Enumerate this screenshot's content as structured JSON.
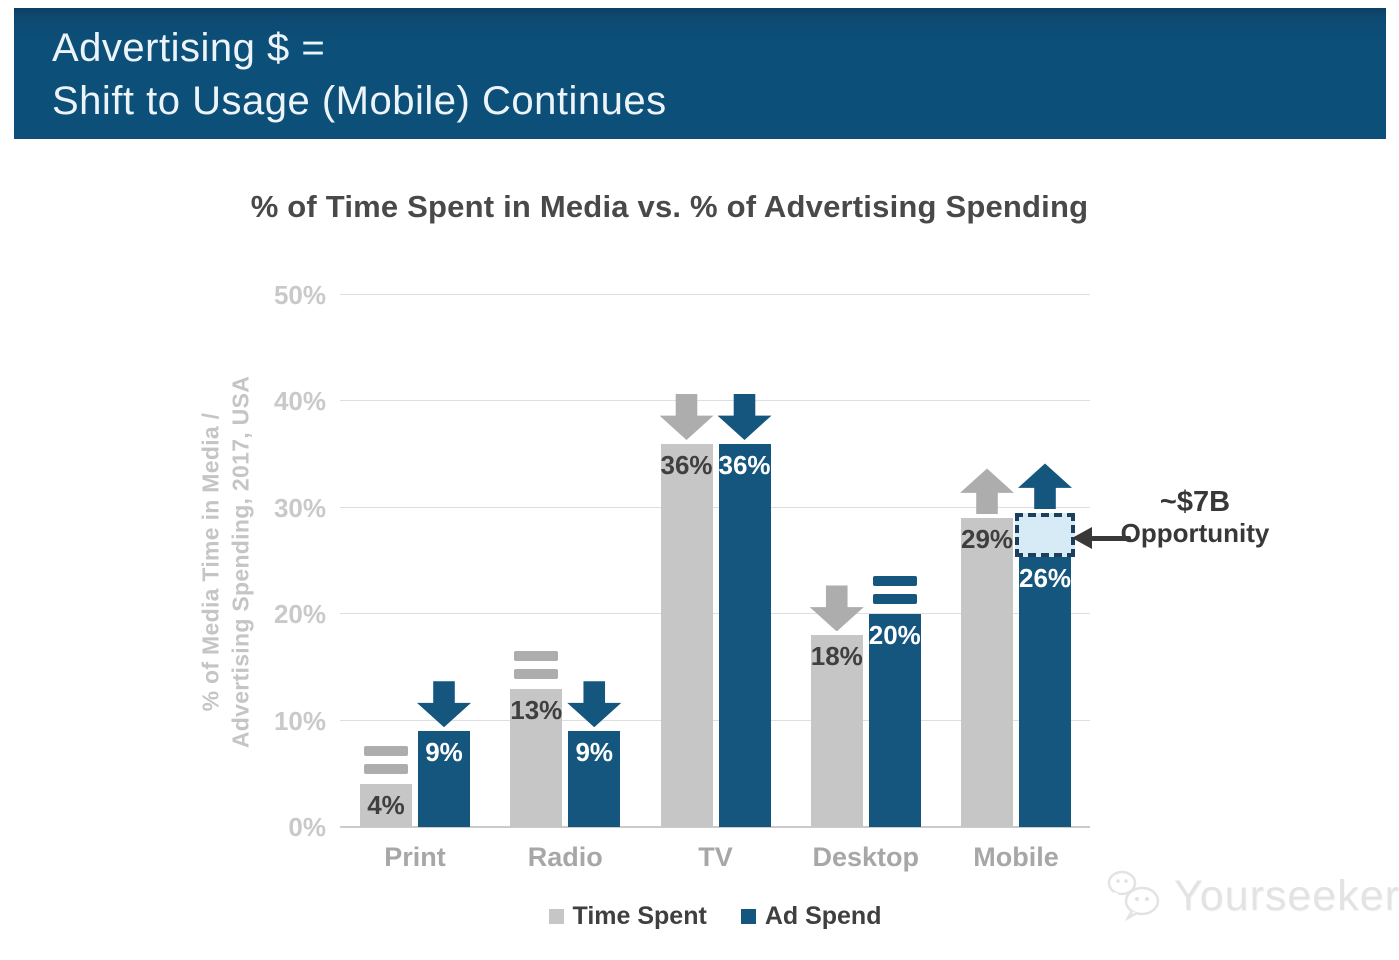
{
  "header": {
    "line1": "Advertising $ =",
    "line2": "Shift to Usage (Mobile) Continues",
    "background_color": "#0c5079",
    "text_color": "#edf4f9"
  },
  "chart_data": {
    "type": "bar",
    "title": "% of Time Spent in Media vs. % of Advertising Spending",
    "ylabel_lines": [
      "% of Media Time in Media /",
      "Advertising Spending, 2017, USA"
    ],
    "categories": [
      "Print",
      "Radio",
      "TV",
      "Desktop",
      "Mobile"
    ],
    "series": [
      {
        "name": "Time Spent",
        "color": "#c6c6c6",
        "label_color": "#3f3f3f",
        "indicator_color": "#adadad",
        "values": [
          4,
          13,
          36,
          18,
          29
        ],
        "indicators": [
          "equal",
          "equal",
          "down",
          "down",
          "up"
        ]
      },
      {
        "name": "Ad Spend",
        "color": "#14567e",
        "label_color": "#ffffff",
        "indicator_color": "#14567e",
        "values": [
          9,
          9,
          36,
          20,
          26
        ],
        "indicators": [
          "down",
          "down",
          "down",
          "equal",
          "up"
        ]
      }
    ],
    "value_label_suffix": "%",
    "ylim": [
      0,
      50
    ],
    "ytick_step": 10,
    "ytick_labels": [
      "0%",
      "10%",
      "20%",
      "30%",
      "40%",
      "50%"
    ],
    "grid": true,
    "legend_position": "bottom",
    "annotation": {
      "line1": "~$7B",
      "line2": "Opportunity",
      "category": "Mobile",
      "series": "Ad Spend",
      "box_range": [
        26,
        29
      ],
      "box_fill": "#d7ebf7",
      "box_border": "#1d3f5e"
    }
  },
  "watermark": {
    "text": "Yourseeker",
    "color": "#e3e3e3"
  }
}
